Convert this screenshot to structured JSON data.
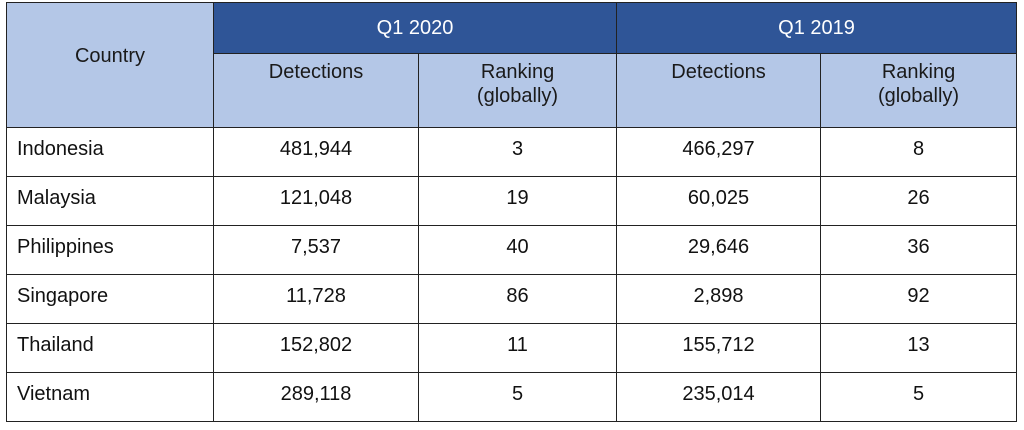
{
  "table": {
    "header": {
      "country_label": "Country",
      "groups": [
        {
          "label": "Q1 2020",
          "detections_label": "Detections",
          "ranking_line1": "Ranking",
          "ranking_line2": "(globally)"
        },
        {
          "label": "Q1 2019",
          "detections_label": "Detections",
          "ranking_line1": "Ranking",
          "ranking_line2": "(globally)"
        }
      ]
    },
    "rows": [
      {
        "country": "Indonesia",
        "det_2020": "481,944",
        "rank_2020": "3",
        "det_2019": "466,297",
        "rank_2019": "8"
      },
      {
        "country": "Malaysia",
        "det_2020": "121,048",
        "rank_2020": "19",
        "det_2019": "60,025",
        "rank_2019": "26"
      },
      {
        "country": "Philippines",
        "det_2020": "7,537",
        "rank_2020": "40",
        "det_2019": "29,646",
        "rank_2019": "36"
      },
      {
        "country": "Singapore",
        "det_2020": "11,728",
        "rank_2020": "86",
        "det_2019": "2,898",
        "rank_2019": "92"
      },
      {
        "country": "Thailand",
        "det_2020": "152,802",
        "rank_2020": "11",
        "det_2019": "155,712",
        "rank_2019": "13"
      },
      {
        "country": "Vietnam",
        "det_2020": "289,118",
        "rank_2020": "5",
        "det_2019": "235,014",
        "rank_2019": "5"
      }
    ],
    "colors": {
      "header_dark": "#2f5597",
      "header_light": "#b4c7e7",
      "border": "#222222"
    }
  }
}
